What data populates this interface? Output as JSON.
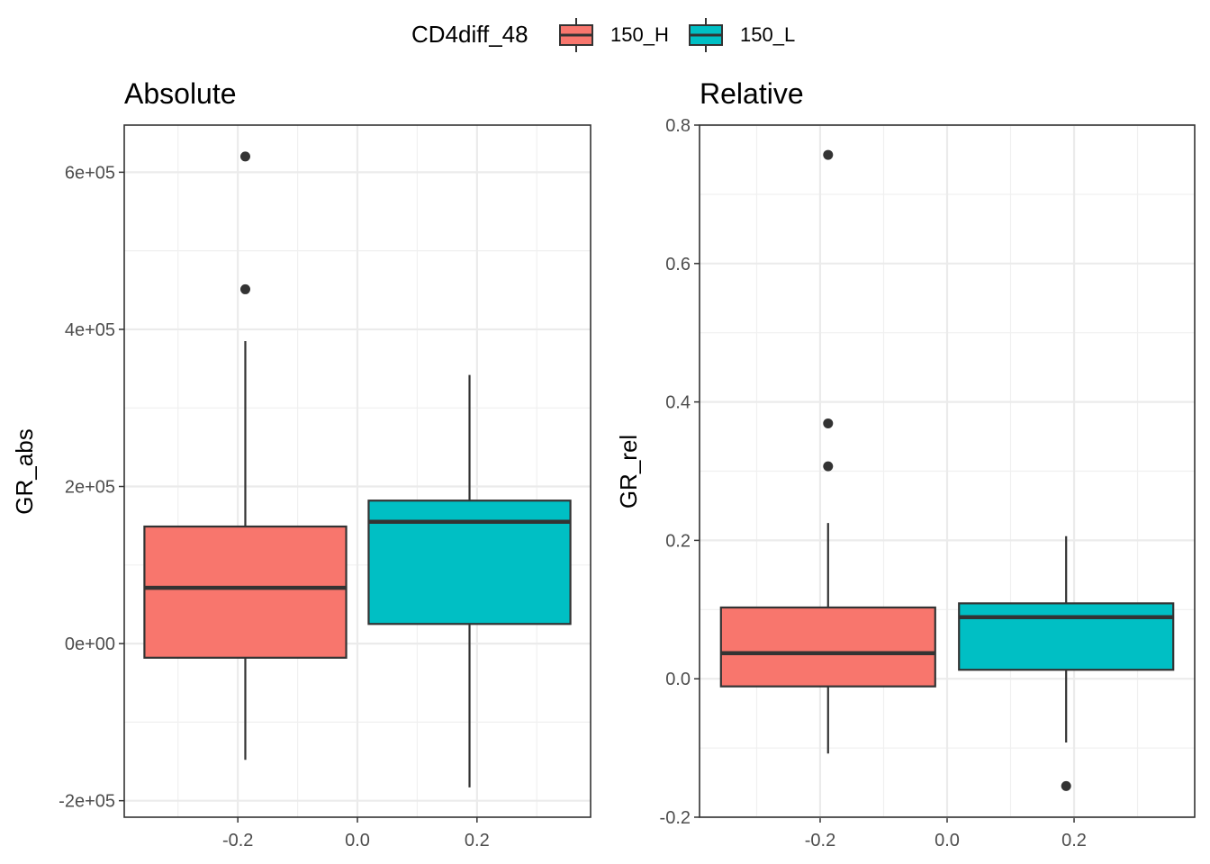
{
  "legend": {
    "title": "CD4diff_48",
    "entries": [
      {
        "label": "150_H",
        "color": "#F8766D"
      },
      {
        "label": "150_L",
        "color": "#00BFC4"
      }
    ]
  },
  "chart_data": [
    {
      "type": "box",
      "title": "Absolute",
      "ylabel": "GR_abs",
      "xlabel": "",
      "xlim": [
        -0.39,
        0.39
      ],
      "ylim": [
        -221000,
        660000
      ],
      "xticks": [
        -0.2,
        0.0,
        0.2
      ],
      "xtick_labels": [
        "-0.2",
        "0.0",
        "0.2"
      ],
      "yticks": [
        -200000,
        0,
        200000,
        400000,
        600000
      ],
      "ytick_labels": [
        "-2e+05",
        "0e+00",
        "2e+05",
        "4e+05",
        "6e+05"
      ],
      "grid": true,
      "boxes": [
        {
          "group": "150_H",
          "x": -0.1875,
          "width": 0.3375,
          "whisker_low": -148000,
          "q1": -18000,
          "median": 71000,
          "q3": 149000,
          "whisker_high": 385000,
          "outliers": [
            451000,
            620000
          ]
        },
        {
          "group": "150_L",
          "x": 0.1875,
          "width": 0.3375,
          "whisker_low": -183000,
          "q1": 25000,
          "median": 155000,
          "q3": 182000,
          "whisker_high": 342000,
          "outliers": []
        }
      ]
    },
    {
      "type": "box",
      "title": "Relative",
      "ylabel": "GR_rel",
      "xlabel": "",
      "xlim": [
        -0.39,
        0.39
      ],
      "ylim": [
        -0.2,
        0.8
      ],
      "xticks": [
        -0.2,
        0.0,
        0.2
      ],
      "xtick_labels": [
        "-0.2",
        "0.0",
        "0.2"
      ],
      "yticks": [
        -0.2,
        0.0,
        0.2,
        0.4,
        0.6,
        0.8
      ],
      "ytick_labels": [
        "-0.2",
        "0.0",
        "0.2",
        "0.4",
        "0.6",
        "0.8"
      ],
      "grid": true,
      "boxes": [
        {
          "group": "150_H",
          "x": -0.1875,
          "width": 0.3375,
          "whisker_low": -0.108,
          "q1": -0.011,
          "median": 0.037,
          "q3": 0.103,
          "whisker_high": 0.225,
          "outliers": [
            0.307,
            0.369,
            0.757
          ]
        },
        {
          "group": "150_L",
          "x": 0.1875,
          "width": 0.3375,
          "whisker_low": -0.092,
          "q1": 0.013,
          "median": 0.089,
          "q3": 0.109,
          "whisker_high": 0.206,
          "outliers": [
            -0.155
          ]
        }
      ]
    }
  ]
}
